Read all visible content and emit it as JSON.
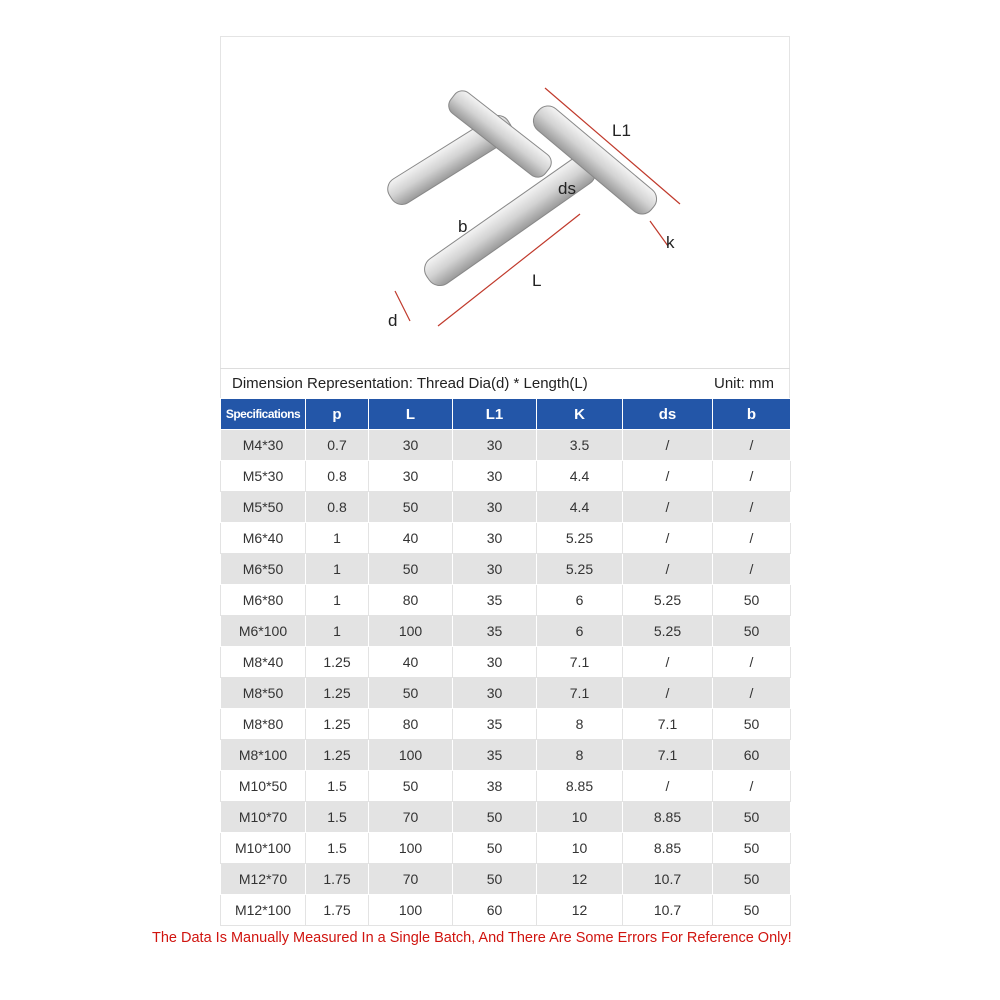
{
  "diagram_labels": {
    "L1": "L1",
    "ds": "ds",
    "b": "b",
    "k": "k",
    "L": "L",
    "d": "d"
  },
  "caption": {
    "left": "Dimension Representation: Thread Dia(d) * Length(L)",
    "right": "Unit: mm"
  },
  "table": {
    "headers": [
      "Specifications",
      "p",
      "L",
      "L1",
      "K",
      "ds",
      "b"
    ],
    "rows": [
      [
        "M4*30",
        "0.7",
        "30",
        "30",
        "3.5",
        "/",
        "/"
      ],
      [
        "M5*30",
        "0.8",
        "30",
        "30",
        "4.4",
        "/",
        "/"
      ],
      [
        "M5*50",
        "0.8",
        "50",
        "30",
        "4.4",
        "/",
        "/"
      ],
      [
        "M6*40",
        "1",
        "40",
        "30",
        "5.25",
        "/",
        "/"
      ],
      [
        "M6*50",
        "1",
        "50",
        "30",
        "5.25",
        "/",
        "/"
      ],
      [
        "M6*80",
        "1",
        "80",
        "35",
        "6",
        "5.25",
        "50"
      ],
      [
        "M6*100",
        "1",
        "100",
        "35",
        "6",
        "5.25",
        "50"
      ],
      [
        "M8*40",
        "1.25",
        "40",
        "30",
        "7.1",
        "/",
        "/"
      ],
      [
        "M8*50",
        "1.25",
        "50",
        "30",
        "7.1",
        "/",
        "/"
      ],
      [
        "M8*80",
        "1.25",
        "80",
        "35",
        "8",
        "7.1",
        "50"
      ],
      [
        "M8*100",
        "1.25",
        "100",
        "35",
        "8",
        "7.1",
        "60"
      ],
      [
        "M10*50",
        "1.5",
        "50",
        "38",
        "8.85",
        "/",
        "/"
      ],
      [
        "M10*70",
        "1.5",
        "70",
        "50",
        "10",
        "8.85",
        "50"
      ],
      [
        "M10*100",
        "1.5",
        "100",
        "50",
        "10",
        "8.85",
        "50"
      ],
      [
        "M12*70",
        "1.75",
        "70",
        "50",
        "12",
        "10.7",
        "50"
      ],
      [
        "M12*100",
        "1.75",
        "100",
        "60",
        "12",
        "10.7",
        "50"
      ]
    ]
  },
  "note": "The Data Is Manually Measured In a Single Batch, And There Are Some Errors For Reference Only!",
  "colors": {
    "header": "#2356a8",
    "note": "#d0140f",
    "dimension_lines": "#c0392b"
  }
}
